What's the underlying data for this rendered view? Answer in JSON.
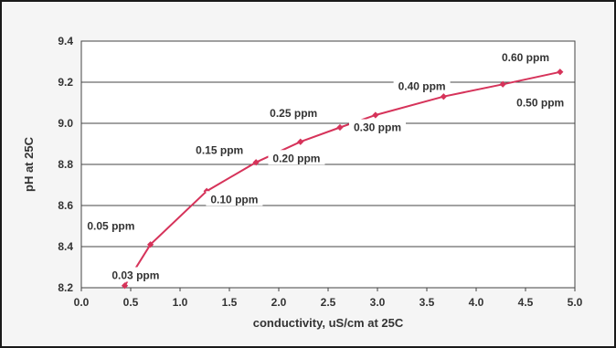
{
  "chart_data": {
    "type": "line",
    "title": "",
    "xlabel": "conductivity, uS/cm at 25C",
    "ylabel": "pH at 25C",
    "xlim": [
      0,
      5
    ],
    "ylim": [
      8.2,
      9.4
    ],
    "x_ticks": [
      "0.0",
      "0.5",
      "1.0",
      "1.5",
      "2.0",
      "2.5",
      "3.0",
      "3.5",
      "4.0",
      "4.5",
      "5.0"
    ],
    "y_ticks": [
      "8.2",
      "8.4",
      "8.6",
      "8.8",
      "9.0",
      "9.2",
      "9.4"
    ],
    "grid": true,
    "legend": "none",
    "line_color": "#d6335a",
    "series": [
      {
        "x": [
          0.44,
          0.7,
          1.27,
          1.77,
          2.22,
          2.62,
          2.98,
          3.67,
          4.27,
          4.85
        ],
        "y": [
          8.21,
          8.41,
          8.67,
          8.81,
          8.91,
          8.98,
          9.04,
          9.13,
          9.19,
          9.25
        ]
      }
    ],
    "annotations": [
      {
        "text": "0.03 ppm",
        "x": 0.55,
        "y": 8.26
      },
      {
        "text": "0.05 ppm",
        "x": 0.3,
        "y": 8.5
      },
      {
        "text": "0.10 ppm",
        "x": 1.55,
        "y": 8.63
      },
      {
        "text": "0.15 ppm",
        "x": 1.4,
        "y": 8.87
      },
      {
        "text": "0.20 ppm",
        "x": 2.18,
        "y": 8.83
      },
      {
        "text": "0.25 ppm",
        "x": 2.15,
        "y": 9.05
      },
      {
        "text": "0.30 ppm",
        "x": 3.0,
        "y": 8.98
      },
      {
        "text": "0.40 ppm",
        "x": 3.45,
        "y": 9.18
      },
      {
        "text": "0.50 ppm",
        "x": 4.65,
        "y": 9.1
      },
      {
        "text": "0.60 ppm",
        "x": 4.5,
        "y": 9.32
      }
    ]
  }
}
